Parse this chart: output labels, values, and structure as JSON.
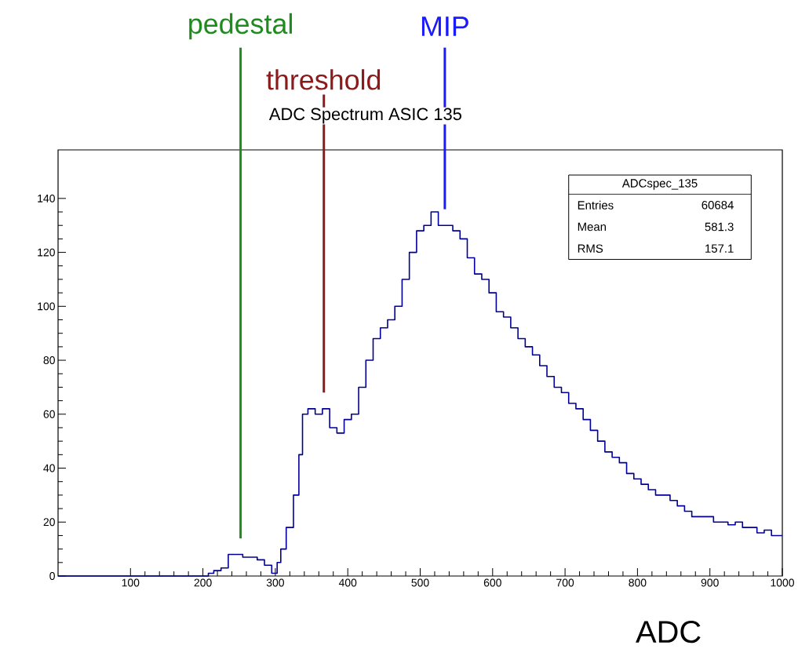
{
  "chart_data": {
    "type": "step",
    "title": "ADC Spectrum ASIC 135",
    "xlabel": "ADC",
    "x": [
      0,
      100,
      200,
      205,
      210,
      220,
      230,
      240,
      250,
      260,
      270,
      280,
      290,
      300,
      305,
      310,
      320,
      330,
      335,
      340,
      350,
      360,
      370,
      380,
      390,
      400,
      410,
      420,
      430,
      440,
      450,
      460,
      470,
      480,
      490,
      500,
      510,
      520,
      530,
      540,
      550,
      560,
      570,
      580,
      590,
      600,
      610,
      620,
      630,
      640,
      650,
      660,
      670,
      680,
      690,
      700,
      710,
      720,
      730,
      740,
      750,
      760,
      770,
      780,
      790,
      800,
      810,
      820,
      830,
      840,
      850,
      860,
      870,
      880,
      890,
      900,
      910,
      920,
      930,
      940,
      950,
      960,
      970,
      980,
      990,
      1000
    ],
    "series": [
      {
        "color": "#000099",
        "values": [
          0,
          0,
          0,
          0,
          1,
          2,
          3,
          8,
          8,
          7,
          7,
          6,
          4,
          1,
          5,
          10,
          18,
          30,
          45,
          60,
          62,
          60,
          62,
          55,
          53,
          58,
          60,
          70,
          80,
          88,
          92,
          95,
          100,
          110,
          120,
          128,
          130,
          135,
          130,
          130,
          128,
          125,
          118,
          112,
          110,
          105,
          98,
          96,
          92,
          88,
          85,
          82,
          78,
          74,
          70,
          68,
          64,
          62,
          58,
          54,
          50,
          46,
          44,
          42,
          38,
          36,
          34,
          32,
          30,
          30,
          28,
          26,
          24,
          22,
          22,
          22,
          20,
          20,
          19,
          20,
          18,
          18,
          16,
          17,
          15,
          15
        ]
      }
    ],
    "xlim": [
      0,
      1000
    ],
    "ylim": [
      0,
      158
    ],
    "xticks": [
      100,
      200,
      300,
      400,
      500,
      600,
      700,
      800,
      900,
      1000
    ],
    "yticks": [
      0,
      20,
      40,
      60,
      80,
      100,
      120,
      140
    ],
    "ref_lines": [
      {
        "axis": "x",
        "value": 252,
        "label": "pedestal",
        "color": "#1f8b1f"
      },
      {
        "axis": "x",
        "value": 367,
        "label": "threshold",
        "color": "#8b1a1a"
      },
      {
        "axis": "x",
        "value": 534,
        "label": "MIP",
        "color": "#1a1aff"
      }
    ],
    "annotations": [
      "ADCspec_135",
      "Entries",
      "60684",
      "Mean",
      "581.3",
      "RMS",
      "157.1"
    ]
  }
}
